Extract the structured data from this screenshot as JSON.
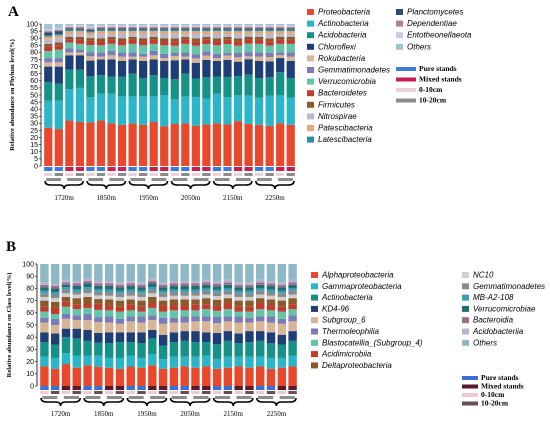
{
  "chart_data": [
    {
      "panel": "A",
      "type": "bar",
      "stacked": true,
      "ylabel": "Relative abundance on Phylum level(%)",
      "ylim": [
        0,
        100
      ],
      "yticks": [
        0,
        5,
        10,
        15,
        20,
        25,
        30,
        35,
        40,
        45,
        50,
        55,
        60,
        65,
        70,
        75,
        80,
        85,
        90,
        95,
        100
      ],
      "grid": false,
      "legend_position": "right",
      "altitudes": [
        "1720m",
        "1850m",
        "1950m",
        "2050m",
        "2150m",
        "2250m"
      ],
      "categories": [
        "1720m-P-0-10",
        "1720m-P-10-20",
        "1720m-M-0-10",
        "1720m-M-10-20",
        "1850m-P-0-10",
        "1850m-P-10-20",
        "1850m-M-0-10",
        "1850m-M-10-20",
        "1950m-P-0-10",
        "1950m-P-10-20",
        "1950m-M-0-10",
        "1950m-M-10-20",
        "2050m-P-0-10",
        "2050m-P-10-20",
        "2050m-M-0-10",
        "2050m-M-10-20",
        "2150m-P-0-10",
        "2150m-P-10-20",
        "2150m-M-0-10",
        "2150m-M-10-20",
        "2250m-P-0-10",
        "2250m-P-10-20",
        "2250m-M-0-10",
        "2250m-M-10-20"
      ],
      "series": [
        {
          "name": "Proteobacteria",
          "color": "#e8492c",
          "values": [
            27,
            26,
            32,
            31,
            31,
            32,
            30,
            29,
            30,
            29,
            31,
            28,
            29,
            30,
            28,
            29,
            30,
            29,
            31,
            30,
            29,
            28,
            30,
            29
          ]
        },
        {
          "name": "Actinobacteria",
          "color": "#2bb5c9",
          "values": [
            19,
            20,
            22,
            24,
            18,
            19,
            21,
            20,
            19,
            20,
            18,
            22,
            17,
            19,
            20,
            18,
            21,
            19,
            18,
            20,
            19,
            21,
            20,
            19
          ]
        },
        {
          "name": "Acidobacteria",
          "color": "#169186",
          "values": [
            13,
            12,
            14,
            13,
            15,
            13,
            12,
            14,
            16,
            13,
            15,
            12,
            14,
            16,
            13,
            15,
            12,
            14,
            13,
            15,
            14,
            13,
            16,
            14
          ]
        },
        {
          "name": "Chloroflexi",
          "color": "#1f3e77",
          "values": [
            11,
            12,
            10,
            10,
            11,
            11,
            12,
            11,
            10,
            12,
            11,
            12,
            13,
            10,
            11,
            12,
            11,
            12,
            10,
            11,
            12,
            11,
            10,
            12
          ]
        },
        {
          "name": "Rokubacteria",
          "color": "#d9b595",
          "values": [
            3,
            3,
            2,
            2,
            3,
            2,
            3,
            3,
            2,
            3,
            3,
            2,
            3,
            2,
            3,
            3,
            2,
            3,
            3,
            2,
            3,
            3,
            2,
            3
          ]
        },
        {
          "name": "Gemmatimonadetes",
          "color": "#7a7bb8",
          "values": [
            3,
            3,
            3,
            2,
            3,
            3,
            3,
            3,
            3,
            2,
            3,
            3,
            2,
            3,
            3,
            3,
            3,
            2,
            3,
            3,
            3,
            3,
            2,
            3
          ]
        },
        {
          "name": "Verrucomicrobia",
          "color": "#63c4a8",
          "values": [
            5,
            6,
            4,
            4,
            5,
            5,
            5,
            5,
            6,
            6,
            5,
            6,
            5,
            6,
            6,
            5,
            6,
            6,
            5,
            6,
            6,
            5,
            6,
            6
          ]
        },
        {
          "name": "Bacteroidetes",
          "color": "#c33b2c",
          "values": [
            3,
            3,
            2,
            3,
            3,
            3,
            3,
            3,
            3,
            3,
            3,
            3,
            3,
            3,
            3,
            3,
            3,
            3,
            3,
            3,
            3,
            3,
            3,
            3
          ]
        },
        {
          "name": "Firmicutes",
          "color": "#8b5a2b",
          "values": [
            2,
            2,
            2,
            2,
            2,
            2,
            2,
            2,
            2,
            2,
            2,
            2,
            2,
            2,
            2,
            2,
            2,
            2,
            2,
            2,
            2,
            2,
            2,
            2
          ]
        },
        {
          "name": "Nitrospirae",
          "color": "#b8b9cf",
          "values": [
            3,
            3,
            2,
            2,
            2,
            3,
            2,
            3,
            2,
            3,
            2,
            3,
            3,
            2,
            3,
            2,
            3,
            2,
            3,
            2,
            2,
            3,
            2,
            2
          ]
        },
        {
          "name": "Patescibacteria",
          "color": "#e6a87a",
          "values": [
            2,
            2,
            2,
            2,
            2,
            2,
            2,
            2,
            2,
            2,
            2,
            2,
            2,
            2,
            2,
            2,
            2,
            2,
            2,
            2,
            2,
            2,
            2,
            2
          ]
        },
        {
          "name": "Latescibacteria",
          "color": "#2f8fa3",
          "values": [
            1,
            1,
            1,
            1,
            1,
            1,
            1,
            1,
            1,
            1,
            1,
            1,
            1,
            1,
            1,
            1,
            1,
            1,
            1,
            1,
            1,
            1,
            1,
            1
          ]
        },
        {
          "name": "Planctomycetes",
          "color": "#2b4f73",
          "values": [
            2,
            2,
            1,
            1,
            1,
            1,
            1,
            1,
            1,
            1,
            1,
            1,
            1,
            1,
            1,
            1,
            1,
            1,
            1,
            1,
            1,
            1,
            1,
            1
          ]
        },
        {
          "name": "Dependentiae",
          "color": "#b07f9e",
          "values": [
            1,
            1,
            1,
            1,
            1,
            1,
            1,
            1,
            1,
            1,
            1,
            1,
            1,
            1,
            1,
            1,
            1,
            1,
            1,
            1,
            1,
            1,
            1,
            1
          ]
        },
        {
          "name": "Entotheonellaeota",
          "color": "#cfc8dd",
          "values": [
            1,
            1,
            1,
            1,
            1,
            1,
            1,
            1,
            1,
            1,
            1,
            1,
            1,
            1,
            1,
            1,
            1,
            1,
            1,
            1,
            1,
            1,
            1,
            1
          ]
        },
        {
          "name": "Others",
          "color": "#9fc5d3",
          "values": [
            4,
            3,
            1,
            1,
            2,
            1,
            1,
            1,
            1,
            1,
            1,
            1,
            1,
            1,
            1,
            1,
            1,
            1,
            1,
            1,
            1,
            1,
            1,
            1
          ]
        }
      ],
      "group_legend": [
        {
          "label": "Pure stands",
          "color": "#3a7be0"
        },
        {
          "label": "Mixed stands",
          "color": "#c81e50"
        },
        {
          "label": "0-10cm",
          "color": "#e9d2dc"
        },
        {
          "label": "10-20cm",
          "color": "#8c8c8c"
        }
      ]
    },
    {
      "panel": "B",
      "type": "bar",
      "stacked": true,
      "ylabel": "Relative abundance on Class level(%)",
      "ylim": [
        0,
        100
      ],
      "yticks": [
        0,
        10,
        20,
        30,
        40,
        50,
        60,
        70,
        80,
        90,
        100
      ],
      "grid": false,
      "legend_position": "right",
      "altitudes": [
        "1720m",
        "1850m",
        "1950m",
        "2050m",
        "2150m",
        "2250m"
      ],
      "categories": [
        "1720m-P-0-10",
        "1720m-P-10-20",
        "1720m-M-0-10",
        "1720m-M-10-20",
        "1850m-P-0-10",
        "1850m-P-10-20",
        "1850m-M-0-10",
        "1850m-M-10-20",
        "1950m-P-0-10",
        "1950m-P-10-20",
        "1950m-M-0-10",
        "1950m-M-10-20",
        "2050m-P-0-10",
        "2050m-P-10-20",
        "2050m-M-0-10",
        "2050m-M-10-20",
        "2150m-P-0-10",
        "2150m-P-10-20",
        "2150m-M-0-10",
        "2150m-M-10-20",
        "2250m-P-0-10",
        "2250m-P-10-20",
        "2250m-M-0-10",
        "2250m-M-10-20"
      ],
      "series": [
        {
          "name": "Alphaproteobacteria",
          "color": "#e8492c",
          "values": [
            16,
            14,
            18,
            15,
            17,
            16,
            15,
            14,
            16,
            15,
            17,
            14,
            15,
            16,
            15,
            16,
            14,
            15,
            16,
            15,
            16,
            14,
            15,
            16
          ]
        },
        {
          "name": "Gammaproteobacteria",
          "color": "#2bb5c9",
          "values": [
            8,
            9,
            9,
            10,
            8,
            9,
            8,
            9,
            9,
            8,
            9,
            8,
            9,
            8,
            9,
            9,
            8,
            9,
            8,
            9,
            8,
            9,
            8,
            9
          ]
        },
        {
          "name": "Actinobacteria",
          "color": "#169186",
          "values": [
            12,
            11,
            13,
            14,
            12,
            11,
            12,
            13,
            11,
            12,
            13,
            11,
            12,
            13,
            12,
            11,
            12,
            13,
            11,
            12,
            13,
            12,
            11,
            12
          ]
        },
        {
          "name": "KD4-96",
          "color": "#1f3e77",
          "values": [
            8,
            9,
            7,
            8,
            9,
            8,
            9,
            8,
            8,
            9,
            7,
            9,
            8,
            8,
            9,
            8,
            9,
            8,
            8,
            9,
            8,
            9,
            8,
            8
          ]
        },
        {
          "name": "Subgroup_6",
          "color": "#d9b595",
          "values": [
            8,
            7,
            8,
            7,
            8,
            9,
            8,
            7,
            9,
            8,
            8,
            9,
            8,
            7,
            8,
            9,
            8,
            8,
            9,
            7,
            8,
            8,
            9,
            8
          ]
        },
        {
          "name": "Thermoleophilia",
          "color": "#7a7bb8",
          "values": [
            4,
            5,
            4,
            4,
            5,
            4,
            5,
            4,
            4,
            5,
            4,
            5,
            4,
            5,
            4,
            4,
            5,
            4,
            5,
            4,
            4,
            5,
            4,
            5
          ]
        },
        {
          "name": "Blastocatellia_(Subgroup_4)",
          "color": "#63c4a8",
          "values": [
            5,
            4,
            6,
            5,
            5,
            6,
            5,
            6,
            5,
            4,
            6,
            5,
            6,
            5,
            5,
            6,
            5,
            6,
            4,
            5,
            6,
            5,
            6,
            5
          ]
        },
        {
          "name": "Acidimicrobiia",
          "color": "#c33b2c",
          "values": [
            4,
            5,
            4,
            4,
            4,
            5,
            4,
            4,
            5,
            4,
            4,
            5,
            4,
            4,
            5,
            4,
            4,
            5,
            4,
            4,
            5,
            4,
            4,
            4
          ]
        },
        {
          "name": "Deltaproteobacteria",
          "color": "#8b5a2b",
          "values": [
            5,
            5,
            4,
            5,
            5,
            4,
            5,
            5,
            4,
            5,
            5,
            4,
            5,
            5,
            4,
            5,
            5,
            4,
            5,
            5,
            4,
            5,
            5,
            5
          ]
        },
        {
          "name": "NC10",
          "color": "#cfcfcf",
          "values": [
            3,
            3,
            3,
            3,
            3,
            3,
            3,
            3,
            3,
            3,
            3,
            3,
            3,
            3,
            3,
            3,
            3,
            3,
            3,
            3,
            3,
            3,
            3,
            3
          ]
        },
        {
          "name": "Gemmatimonadetes",
          "color": "#8a8a8a",
          "values": [
            3,
            3,
            3,
            2,
            3,
            3,
            3,
            3,
            3,
            3,
            3,
            3,
            3,
            3,
            3,
            3,
            3,
            3,
            3,
            3,
            3,
            3,
            3,
            3
          ]
        },
        {
          "name": "MB-A2-108",
          "color": "#3aa0b8",
          "values": [
            2,
            2,
            2,
            2,
            2,
            2,
            2,
            2,
            2,
            2,
            2,
            2,
            2,
            2,
            2,
            2,
            2,
            2,
            2,
            2,
            2,
            2,
            2,
            2
          ]
        },
        {
          "name": "Verrucomicrobiae",
          "color": "#1d6f73",
          "values": [
            3,
            3,
            2,
            3,
            3,
            3,
            3,
            3,
            3,
            3,
            3,
            3,
            3,
            3,
            3,
            3,
            3,
            3,
            3,
            3,
            3,
            3,
            3,
            3
          ]
        },
        {
          "name": "Bacteroidia",
          "color": "#9c6e8e",
          "values": [
            2,
            2,
            2,
            2,
            2,
            2,
            2,
            2,
            2,
            2,
            2,
            2,
            2,
            2,
            2,
            2,
            2,
            2,
            2,
            2,
            2,
            2,
            2,
            2
          ]
        },
        {
          "name": "Acidobacteriia",
          "color": "#b7b2cf",
          "values": [
            2,
            2,
            2,
            2,
            2,
            2,
            2,
            2,
            2,
            2,
            2,
            2,
            2,
            2,
            2,
            2,
            2,
            2,
            2,
            2,
            2,
            2,
            2,
            2
          ]
        },
        {
          "name": "Others",
          "color": "#8fb8c7",
          "values": [
            15,
            16,
            13,
            14,
            12,
            14,
            14,
            15,
            14,
            15,
            12,
            15,
            14,
            14,
            14,
            13,
            14,
            13,
            15,
            15,
            13,
            14,
            15,
            13
          ]
        }
      ],
      "group_legend": [
        {
          "label": "Pure stands",
          "color": "#3a6fd8"
        },
        {
          "label": "Mixed stands",
          "color": "#5a1a2a"
        },
        {
          "label": "0-10cm",
          "color": "#f0c8d6"
        },
        {
          "label": "10-20cm",
          "color": "#6b4a5a"
        }
      ]
    }
  ]
}
